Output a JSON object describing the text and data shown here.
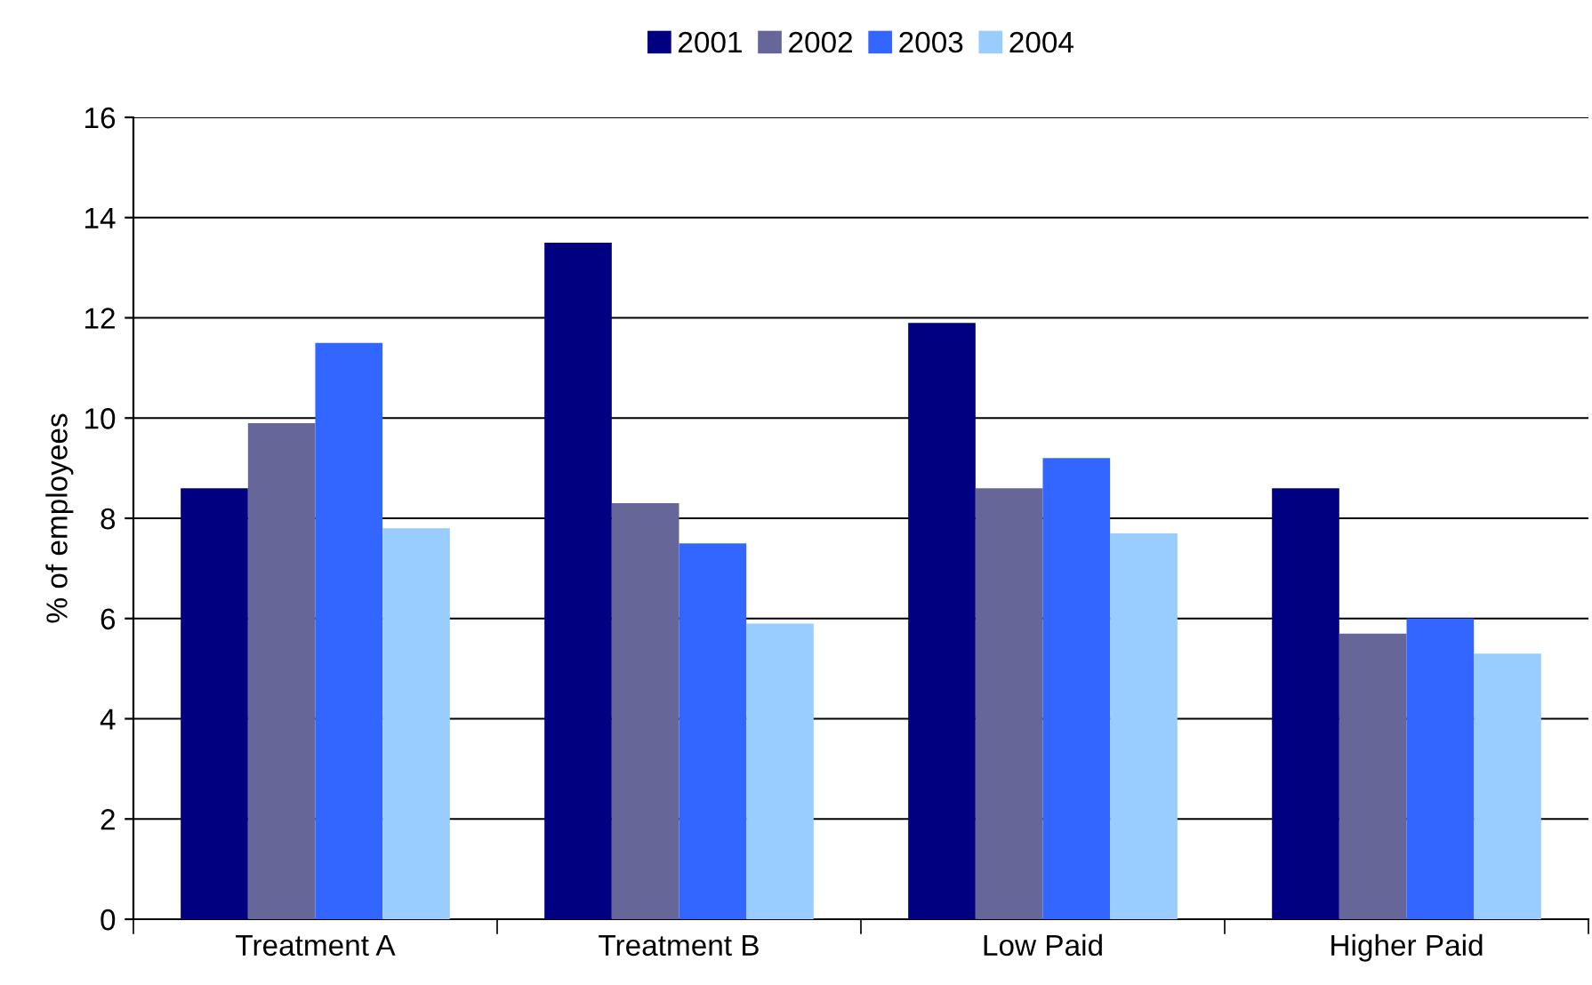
{
  "chart_data": {
    "type": "bar",
    "ylabel": "% of employees",
    "categories": [
      "Treatment A",
      "Treatment B",
      "Low Paid",
      "Higher Paid"
    ],
    "series": [
      {
        "name": "2001",
        "color": "#000080",
        "values": [
          8.6,
          13.5,
          11.9,
          8.6
        ]
      },
      {
        "name": "2002",
        "color": "#666699",
        "values": [
          9.9,
          8.3,
          8.6,
          5.7
        ]
      },
      {
        "name": "2003",
        "color": "#3366ff",
        "values": [
          11.5,
          7.5,
          9.2,
          6.0
        ]
      },
      {
        "name": "2004",
        "color": "#99ccff",
        "values": [
          7.8,
          5.9,
          7.7,
          5.3
        ]
      }
    ],
    "ylim": [
      0,
      16
    ],
    "yticks": [
      0,
      2,
      4,
      6,
      8,
      10,
      12,
      14,
      16
    ],
    "grid": "y",
    "legend": "top"
  }
}
